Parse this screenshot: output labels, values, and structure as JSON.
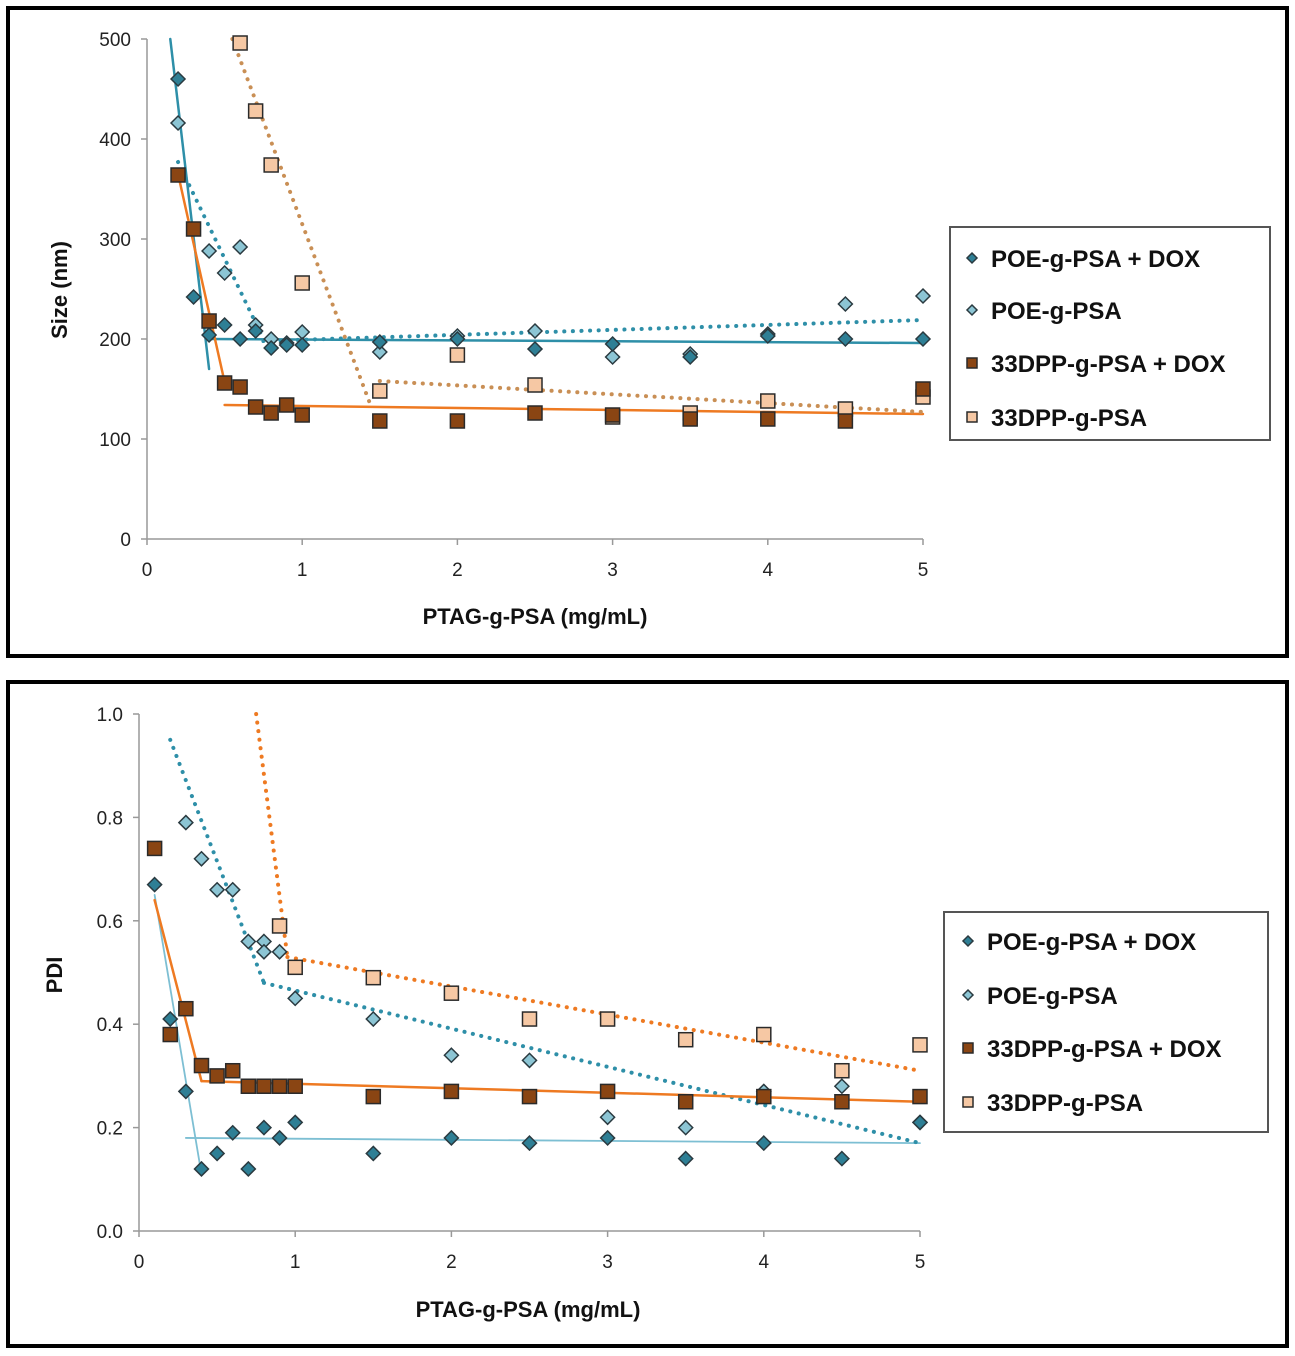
{
  "colors": {
    "poe_dox": "#2e7f95",
    "poe": "#8cc5d4",
    "dpp_dox": "#8a4513",
    "dpp": "#f6c8a4",
    "trend_teal": "#2e8fa8",
    "trend_teal_light": "#7dbfd3",
    "trend_orange": "#ee7a22",
    "trend_orange_dotted_top": "#c98f55"
  },
  "chart_data": [
    {
      "type": "scatter",
      "title": "",
      "xlabel": "PTAG-g-PSA (mg/mL)",
      "ylabel": "Size (nm)",
      "xlim": [
        0,
        5
      ],
      "ylim": [
        0,
        500
      ],
      "xticks": [
        "0",
        "1",
        "2",
        "3",
        "4",
        "5"
      ],
      "yticks": [
        "0",
        "100",
        "200",
        "300",
        "400",
        "500"
      ],
      "grid": false,
      "legend_position": "right",
      "series": [
        {
          "name": "POE-g-PSA + DOX",
          "marker": "diamond",
          "x": [
            0.2,
            0.3,
            0.4,
            0.5,
            0.6,
            0.7,
            0.8,
            0.9,
            1.0,
            1.5,
            2.0,
            2.5,
            3.0,
            3.5,
            4.0,
            4.5,
            5.0
          ],
          "y": [
            460,
            242,
            204,
            214,
            200,
            208,
            191,
            194,
            194,
            197,
            200,
            190,
            195,
            182,
            203,
            200,
            200
          ],
          "trend": {
            "style": "solid",
            "segments": [
              [
                [
                  0.15,
                  500
                ],
                [
                  0.4,
                  170
                ]
              ],
              [
                [
                  0.4,
                  200
                ],
                [
                  5.0,
                  196
                ]
              ]
            ]
          }
        },
        {
          "name": "POE-g-PSA",
          "marker": "diamond",
          "x": [
            0.2,
            0.4,
            0.5,
            0.6,
            0.7,
            0.8,
            0.9,
            1.0,
            1.5,
            2.0,
            2.5,
            3.0,
            3.5,
            4.0,
            4.5,
            5.0
          ],
          "y": [
            416,
            288,
            266,
            292,
            214,
            200,
            196,
            207,
            187,
            203,
            208,
            182,
            185,
            205,
            235,
            243
          ],
          "trend": {
            "style": "dotted",
            "segments": [
              [
                [
                  0.2,
                  377
                ],
                [
                  0.75,
                  200
                ]
              ],
              [
                [
                  0.75,
                  198
                ],
                [
                  5.0,
                  219
                ]
              ]
            ]
          }
        },
        {
          "name": "33DPP-g-PSA + DOX",
          "marker": "square",
          "x": [
            0.2,
            0.3,
            0.4,
            0.5,
            0.6,
            0.7,
            0.8,
            0.9,
            1.0,
            1.5,
            2.0,
            2.5,
            3.0,
            3.5,
            4.0,
            4.5,
            5.0
          ],
          "y": [
            364,
            310,
            218,
            156,
            152,
            132,
            126,
            134,
            124,
            118,
            118,
            126,
            124,
            120,
            120,
            118,
            150
          ],
          "trend": {
            "style": "solid",
            "segments": [
              [
                [
                  0.2,
                  365
                ],
                [
                  0.5,
                  157
                ]
              ],
              [
                [
                  0.5,
                  134
                ],
                [
                  5.0,
                  125
                ]
              ]
            ]
          }
        },
        {
          "name": "33DPP-g-PSA",
          "marker": "square",
          "x": [
            0.6,
            0.7,
            0.8,
            1.0,
            1.5,
            2.0,
            2.5,
            3.0,
            3.5,
            4.0,
            4.5,
            5.0
          ],
          "y": [
            496,
            428,
            374,
            256,
            148,
            184,
            154,
            122,
            126,
            138,
            130,
            142
          ],
          "trend": {
            "style": "dotted",
            "segments": [
              [
                [
                  0.55,
                  500
                ],
                [
                  1.45,
                  130
                ]
              ],
              [
                [
                  1.5,
                  158
                ],
                [
                  5.0,
                  127
                ]
              ]
            ]
          }
        }
      ]
    },
    {
      "type": "scatter",
      "title": "",
      "xlabel": "PTAG-g-PSA (mg/mL)",
      "ylabel": "PDI",
      "xlim": [
        0,
        5
      ],
      "ylim": [
        0,
        1.0
      ],
      "xticks": [
        "0",
        "1",
        "2",
        "3",
        "4",
        "5"
      ],
      "yticks": [
        "0.0",
        "0.2",
        "0.4",
        "0.6",
        "0.8",
        "1.0"
      ],
      "grid": false,
      "legend_position": "right",
      "series": [
        {
          "name": "POE-g-PSA + DOX",
          "marker": "diamond",
          "x": [
            0.1,
            0.2,
            0.3,
            0.4,
            0.5,
            0.6,
            0.7,
            0.8,
            0.9,
            1.0,
            1.5,
            2.0,
            2.5,
            3.0,
            3.5,
            4.0,
            4.5,
            5.0
          ],
          "y": [
            0.67,
            0.41,
            0.27,
            0.12,
            0.15,
            0.19,
            0.12,
            0.2,
            0.18,
            0.21,
            0.15,
            0.18,
            0.17,
            0.18,
            0.14,
            0.17,
            0.14,
            0.21
          ],
          "trend": {
            "style": "solid-thin",
            "segments": [
              [
                [
                  0.1,
                  0.65
                ],
                [
                  0.4,
                  0.11
                ]
              ],
              [
                [
                  0.3,
                  0.18
                ],
                [
                  5.0,
                  0.17
                ]
              ]
            ]
          }
        },
        {
          "name": "POE-g-PSA",
          "marker": "diamond",
          "x": [
            0.3,
            0.4,
            0.5,
            0.6,
            0.7,
            0.8,
            0.8,
            0.9,
            1.0,
            1.5,
            2.0,
            2.5,
            3.0,
            3.5,
            4.0,
            4.5,
            5.0
          ],
          "y": [
            0.79,
            0.72,
            0.66,
            0.66,
            0.56,
            0.56,
            0.54,
            0.54,
            0.45,
            0.41,
            0.34,
            0.33,
            0.22,
            0.2,
            0.27,
            0.28,
            0.21
          ],
          "trend": {
            "style": "dotted",
            "segments": [
              [
                [
                  0.2,
                  0.95
                ],
                [
                  0.8,
                  0.48
                ]
              ],
              [
                [
                  0.8,
                  0.48
                ],
                [
                  5.0,
                  0.17
                ]
              ]
            ]
          }
        },
        {
          "name": "33DPP-g-PSA + DOX",
          "marker": "square",
          "x": [
            0.1,
            0.2,
            0.3,
            0.4,
            0.5,
            0.6,
            0.7,
            0.8,
            0.9,
            1.0,
            1.5,
            2.0,
            2.5,
            3.0,
            3.5,
            4.0,
            4.5,
            5.0
          ],
          "y": [
            0.74,
            0.38,
            0.43,
            0.32,
            0.3,
            0.31,
            0.28,
            0.28,
            0.28,
            0.28,
            0.26,
            0.27,
            0.26,
            0.27,
            0.25,
            0.26,
            0.25,
            0.26
          ],
          "trend": {
            "style": "solid",
            "segments": [
              [
                [
                  0.1,
                  0.64
                ],
                [
                  0.4,
                  0.29
                ]
              ],
              [
                [
                  0.4,
                  0.29
                ],
                [
                  5.0,
                  0.25
                ]
              ]
            ]
          }
        },
        {
          "name": "33DPP-g-PSA",
          "marker": "square",
          "x": [
            0.9,
            1.0,
            1.5,
            2.0,
            2.5,
            3.0,
            3.5,
            4.0,
            4.5,
            5.0
          ],
          "y": [
            0.59,
            0.51,
            0.49,
            0.46,
            0.41,
            0.41,
            0.37,
            0.38,
            0.31,
            0.36
          ],
          "trend": {
            "style": "dotted",
            "segments": [
              [
                [
                  0.75,
                  1.0
                ],
                [
                  0.95,
                  0.53
                ]
              ],
              [
                [
                  0.95,
                  0.53
                ],
                [
                  5.0,
                  0.31
                ]
              ]
            ]
          }
        }
      ]
    }
  ]
}
